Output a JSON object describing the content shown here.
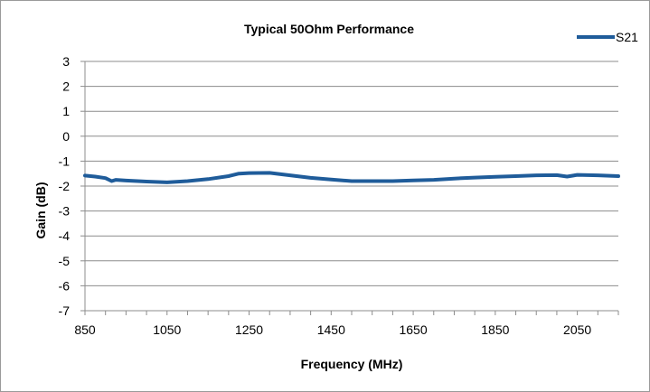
{
  "chart_data": {
    "type": "line",
    "title": "Typical 50Ohm Performance",
    "xlabel": "Frequency (MHz)",
    "ylabel": "Gain (dB)",
    "xlim": [
      850,
      2150
    ],
    "ylim": [
      -7,
      3
    ],
    "x_ticks": [
      850,
      1050,
      1250,
      1450,
      1650,
      1850,
      2050
    ],
    "y_ticks": [
      3,
      2,
      1,
      0,
      -1,
      -2,
      -3,
      -4,
      -5,
      -6,
      -7
    ],
    "grid": "horizontal",
    "legend_position": "top-right",
    "series": [
      {
        "name": "S21",
        "color": "#1f5c9a",
        "x": [
          850,
          875,
          900,
          915,
          925,
          950,
          1000,
          1050,
          1100,
          1150,
          1200,
          1225,
          1250,
          1300,
          1350,
          1400,
          1450,
          1500,
          1550,
          1600,
          1650,
          1700,
          1750,
          1800,
          1850,
          1900,
          1950,
          2000,
          2025,
          2050,
          2100,
          2150
        ],
        "y": [
          -1.58,
          -1.62,
          -1.68,
          -1.8,
          -1.75,
          -1.78,
          -1.82,
          -1.85,
          -1.8,
          -1.72,
          -1.6,
          -1.5,
          -1.48,
          -1.47,
          -1.57,
          -1.67,
          -1.74,
          -1.8,
          -1.8,
          -1.8,
          -1.77,
          -1.75,
          -1.7,
          -1.66,
          -1.63,
          -1.6,
          -1.57,
          -1.56,
          -1.62,
          -1.55,
          -1.57,
          -1.6
        ]
      }
    ]
  }
}
